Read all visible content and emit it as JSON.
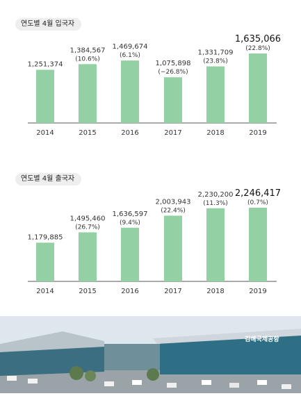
{
  "chart_data": [
    {
      "type": "bar",
      "title": "연도별 4월 입국자",
      "categories": [
        "2014",
        "2015",
        "2016",
        "2017",
        "2018",
        "2019"
      ],
      "values": [
        1251374,
        1384567,
        1469674,
        1075898,
        1331709,
        1635066
      ],
      "value_labels": [
        "1,251,374",
        "1,384,567",
        "1,469,674",
        "1,075,898",
        "1,331,709",
        "1,635,066"
      ],
      "growth_labels": [
        "",
        "(10.6%)",
        "(6.1%)",
        "(−26.8%)",
        "(23.8%)",
        "(22.8%)"
      ],
      "bar_color": "#93d1a4",
      "grid": false
    },
    {
      "type": "bar",
      "title": "연도별 4월 출국자",
      "categories": [
        "2014",
        "2015",
        "2016",
        "2017",
        "2018",
        "2019"
      ],
      "values": [
        1179885,
        1495460,
        1636597,
        2003943,
        2230200,
        2246417
      ],
      "value_labels": [
        "1,179,885",
        "1,495,460",
        "1,636,597",
        "2,003,943",
        "2,230,200",
        "2,246,417"
      ],
      "growth_labels": [
        "",
        "(26.7%)",
        "(9.4%)",
        "(22.4%)",
        "(11.3%)",
        "(0.7%)"
      ],
      "bar_color": "#93d1a4",
      "grid": false
    }
  ],
  "photo": {
    "sign_text": "김해국제공항",
    "sky_color": "#dfe7ee",
    "glass_color": "#2e6f86",
    "roof_color": "#cfd6dc"
  }
}
